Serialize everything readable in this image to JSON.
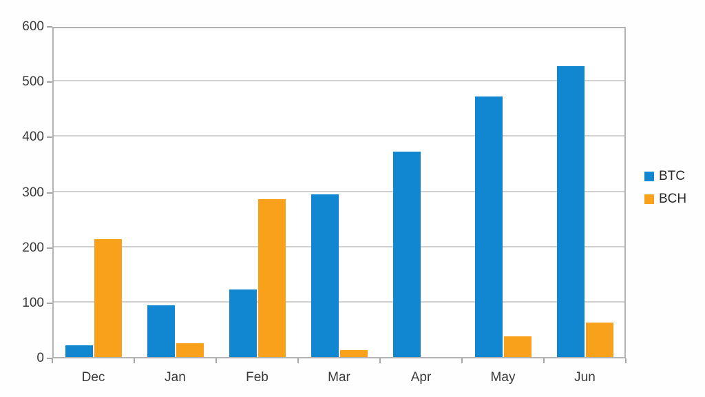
{
  "chart_data": {
    "type": "bar",
    "categories": [
      "Dec",
      "Jan",
      "Feb",
      "Mar",
      "Apr",
      "May",
      "Jun"
    ],
    "series": [
      {
        "name": "BTC",
        "color": "#1287d1",
        "values": [
          21,
          93,
          122,
          294,
          372,
          472,
          527
        ]
      },
      {
        "name": "BCH",
        "color": "#f9a11b",
        "values": [
          213,
          25,
          286,
          12,
          0,
          37,
          62
        ]
      }
    ],
    "ylim": [
      0,
      600
    ],
    "ytick_step": 100,
    "yticks": [
      "0",
      "100",
      "200",
      "300",
      "400",
      "500",
      "600"
    ],
    "grid": true,
    "legend_position": "right",
    "legend_labels": [
      "BTC",
      "BCH"
    ]
  },
  "colors": {
    "btc_blue": "#1287d1",
    "bch_orange": "#f9a11b",
    "gridline": "#d0d0d0",
    "axis": "#a6a6a6",
    "tick_text": "#3a3a3a"
  }
}
